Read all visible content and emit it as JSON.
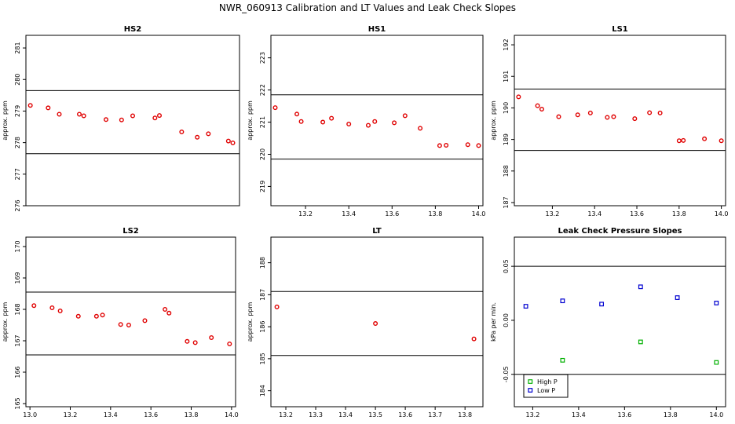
{
  "title": "NWR_060913  Calibration and LT Values and Leak Check Slopes",
  "colors": {
    "red": "#e00000",
    "green": "#00b000",
    "blue": "#0000d0",
    "axis": "#000000"
  },
  "chart_data": [
    {
      "id": "hs2",
      "type": "scatter",
      "title": "HS2",
      "ylabel": "approx. ppm",
      "xlim": [
        13.06,
        14.02
      ],
      "ylim": [
        276,
        281.4
      ],
      "xticks": [],
      "yticks": [
        276,
        277,
        278,
        279,
        280,
        281
      ],
      "hlines": [
        277.65,
        279.65
      ],
      "series": [
        {
          "color": "#e00000",
          "marker": "circle",
          "points": [
            [
              13.08,
              279.18
            ],
            [
              13.16,
              279.1
            ],
            [
              13.21,
              278.9
            ],
            [
              13.3,
              278.9
            ],
            [
              13.32,
              278.85
            ],
            [
              13.42,
              278.73
            ],
            [
              13.49,
              278.72
            ],
            [
              13.54,
              278.85
            ],
            [
              13.64,
              278.78
            ],
            [
              13.66,
              278.86
            ],
            [
              13.76,
              278.34
            ],
            [
              13.83,
              278.17
            ],
            [
              13.88,
              278.28
            ],
            [
              13.97,
              278.05
            ],
            [
              13.99,
              277.99
            ]
          ]
        }
      ]
    },
    {
      "id": "hs1",
      "type": "scatter",
      "title": "HS1",
      "ylabel": "approx. ppm",
      "xlim": [
        13.04,
        14.02
      ],
      "ylim": [
        218.4,
        223.7
      ],
      "xticks": [
        "13.2",
        "13.4",
        "13.6",
        "13.8",
        "14.0"
      ],
      "yticks": [
        219,
        220,
        221,
        222,
        223
      ],
      "hlines": [
        219.85,
        221.85
      ],
      "series": [
        {
          "color": "#e00000",
          "marker": "circle",
          "points": [
            [
              13.06,
              221.45
            ],
            [
              13.16,
              221.25
            ],
            [
              13.18,
              221.02
            ],
            [
              13.28,
              221.0
            ],
            [
              13.32,
              221.12
            ],
            [
              13.4,
              220.94
            ],
            [
              13.49,
              220.9
            ],
            [
              13.52,
              221.02
            ],
            [
              13.61,
              220.98
            ],
            [
              13.66,
              221.2
            ],
            [
              13.73,
              220.81
            ],
            [
              13.82,
              220.27
            ],
            [
              13.85,
              220.28
            ],
            [
              13.95,
              220.3
            ],
            [
              14.0,
              220.27
            ]
          ]
        }
      ]
    },
    {
      "id": "ls1",
      "type": "scatter",
      "title": "LS1",
      "ylabel": "approx. ppm",
      "xlim": [
        13.02,
        14.02
      ],
      "ylim": [
        186.9,
        192.3
      ],
      "xticks": [
        "13.2",
        "13.4",
        "13.6",
        "13.8",
        "14.0"
      ],
      "yticks": [
        187,
        188,
        189,
        190,
        191,
        192
      ],
      "hlines": [
        188.65,
        190.6
      ],
      "series": [
        {
          "color": "#e00000",
          "marker": "circle",
          "points": [
            [
              13.04,
              190.35
            ],
            [
              13.13,
              190.07
            ],
            [
              13.15,
              189.96
            ],
            [
              13.23,
              189.72
            ],
            [
              13.32,
              189.78
            ],
            [
              13.38,
              189.84
            ],
            [
              13.46,
              189.7
            ],
            [
              13.49,
              189.72
            ],
            [
              13.59,
              189.66
            ],
            [
              13.66,
              189.85
            ],
            [
              13.71,
              189.84
            ],
            [
              13.8,
              188.96
            ],
            [
              13.82,
              188.97
            ],
            [
              13.92,
              189.02
            ],
            [
              14.0,
              188.96
            ]
          ]
        }
      ]
    },
    {
      "id": "ls2",
      "type": "scatter",
      "title": "LS2",
      "ylabel": "approx. ppm",
      "xlim": [
        12.98,
        14.02
      ],
      "ylim": [
        164.9,
        170.3
      ],
      "xticks": [
        "13.0",
        "13.2",
        "13.4",
        "13.6",
        "13.8",
        "14.0"
      ],
      "yticks": [
        165,
        166,
        167,
        168,
        169,
        170
      ],
      "hlines": [
        166.55,
        168.55
      ],
      "series": [
        {
          "color": "#e00000",
          "marker": "circle",
          "points": [
            [
              13.02,
              168.12
            ],
            [
              13.11,
              168.05
            ],
            [
              13.15,
              167.95
            ],
            [
              13.24,
              167.78
            ],
            [
              13.33,
              167.78
            ],
            [
              13.36,
              167.82
            ],
            [
              13.45,
              167.52
            ],
            [
              13.49,
              167.5
            ],
            [
              13.57,
              167.64
            ],
            [
              13.67,
              168.0
            ],
            [
              13.69,
              167.88
            ],
            [
              13.78,
              166.98
            ],
            [
              13.82,
              166.94
            ],
            [
              13.9,
              167.1
            ],
            [
              13.99,
              166.9
            ]
          ]
        }
      ]
    },
    {
      "id": "lt",
      "type": "scatter",
      "title": "LT",
      "ylabel": "approx. ppm",
      "xlim": [
        13.15,
        13.86
      ],
      "ylim": [
        183.5,
        188.8
      ],
      "xticks": [
        "13.2",
        "13.3",
        "13.4",
        "13.5",
        "13.6",
        "13.7",
        "13.8"
      ],
      "yticks": [
        184,
        185,
        186,
        187,
        188
      ],
      "hlines": [
        185.1,
        187.1
      ],
      "series": [
        {
          "color": "#e00000",
          "marker": "circle",
          "points": [
            [
              13.17,
              186.62
            ],
            [
              13.5,
              186.1
            ],
            [
              13.83,
              185.62
            ]
          ]
        }
      ]
    },
    {
      "id": "leak",
      "type": "scatter",
      "title": "Leak Check Pressure Slopes",
      "ylabel": "kPa per min.",
      "xlim": [
        13.12,
        14.04
      ],
      "ylim": [
        -0.08,
        0.077
      ],
      "xticks": [
        "13.2",
        "13.4",
        "13.6",
        "13.8",
        "14.0"
      ],
      "yticks": [
        "-0.05",
        "0.00",
        "0.05"
      ],
      "hlines": [
        -0.05,
        0.05
      ],
      "legend": {
        "position": "bottom-left",
        "entries": [
          "High P",
          "Low P"
        ]
      },
      "series": [
        {
          "name": "High P",
          "color": "#00b000",
          "marker": "square",
          "points": [
            [
              13.33,
              -0.037
            ],
            [
              13.67,
              -0.02
            ],
            [
              14.0,
              -0.039
            ]
          ]
        },
        {
          "name": "Low P",
          "color": "#0000d0",
          "marker": "square",
          "points": [
            [
              13.17,
              0.013
            ],
            [
              13.33,
              0.018
            ],
            [
              13.5,
              0.015
            ],
            [
              13.67,
              0.031
            ],
            [
              13.83,
              0.021
            ],
            [
              14.0,
              0.016
            ]
          ]
        }
      ]
    }
  ]
}
